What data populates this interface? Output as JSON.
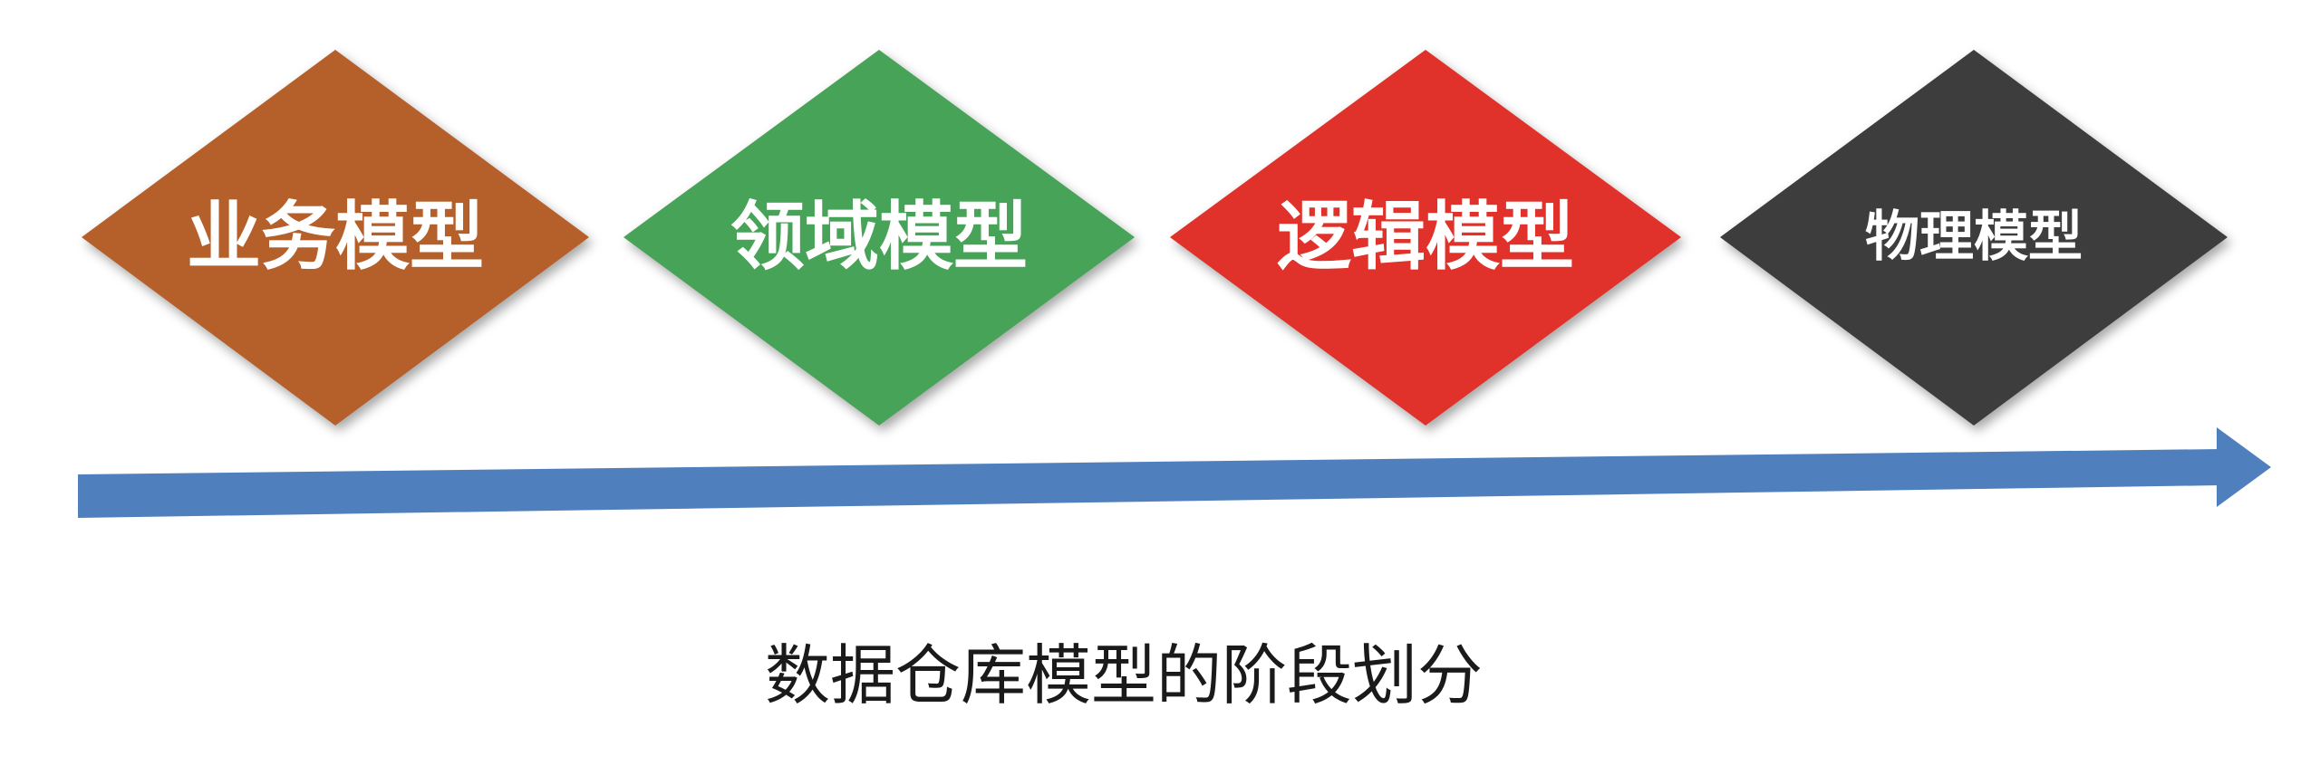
{
  "stages": [
    {
      "label": "业务模型",
      "color": "#b5602a"
    },
    {
      "label": "领域模型",
      "color": "#47a357"
    },
    {
      "label": "逻辑模型",
      "color": "#e0312a"
    },
    {
      "label": "物理模型",
      "color": "#3d3d3d"
    }
  ],
  "arrow": {
    "color": "#4f7fbd"
  },
  "caption": "数据仓库模型的阶段划分"
}
